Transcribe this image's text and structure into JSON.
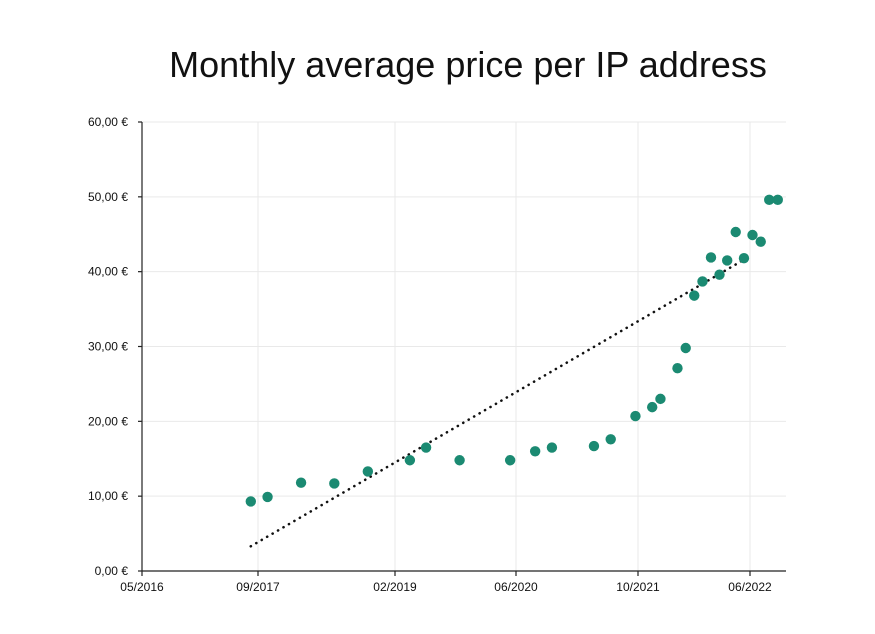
{
  "chart_data": {
    "type": "scatter",
    "title": "Monthly average price per IP address",
    "xlabel": "",
    "ylabel": "",
    "x_tick_labels": [
      "05/2016",
      "09/2017",
      "02/2019",
      "06/2020",
      "10/2021",
      "06/2022"
    ],
    "y_tick_labels": [
      "0,00 €",
      "10,00 €",
      "20,00 €",
      "30,00 €",
      "40,00 €",
      "50,00 €",
      "60,00 €"
    ],
    "y_ticks": [
      0,
      10,
      20,
      30,
      40,
      50,
      60
    ],
    "ylim": [
      0,
      60
    ],
    "xlim": [
      "2016-05-01",
      "2022-10-01"
    ],
    "grid": true,
    "marker_color": "#1b8a72",
    "trendline": {
      "style": "dotted",
      "color": "#111111",
      "points": [
        {
          "x": "2017-06-01",
          "y": 3.3
        },
        {
          "x": "2022-05-01",
          "y": 41.6
        }
      ]
    },
    "points": [
      {
        "x": "2017-06-01",
        "y": 9.3
      },
      {
        "x": "2017-08-01",
        "y": 9.9
      },
      {
        "x": "2017-12-01",
        "y": 11.8
      },
      {
        "x": "2018-04-01",
        "y": 11.7
      },
      {
        "x": "2018-08-01",
        "y": 13.3
      },
      {
        "x": "2019-01-01",
        "y": 14.8
      },
      {
        "x": "2019-03-01",
        "y": 16.5
      },
      {
        "x": "2019-07-01",
        "y": 14.8
      },
      {
        "x": "2020-01-01",
        "y": 14.8
      },
      {
        "x": "2020-04-01",
        "y": 16.0
      },
      {
        "x": "2020-06-01",
        "y": 16.5
      },
      {
        "x": "2020-11-01",
        "y": 16.7
      },
      {
        "x": "2021-01-01",
        "y": 17.6
      },
      {
        "x": "2021-04-01",
        "y": 20.7
      },
      {
        "x": "2021-06-01",
        "y": 21.9
      },
      {
        "x": "2021-07-01",
        "y": 23.0
      },
      {
        "x": "2021-09-01",
        "y": 27.1
      },
      {
        "x": "2021-10-01",
        "y": 29.8
      },
      {
        "x": "2021-11-01",
        "y": 36.8
      },
      {
        "x": "2021-12-01",
        "y": 38.7
      },
      {
        "x": "2022-01-01",
        "y": 41.9
      },
      {
        "x": "2022-02-01",
        "y": 39.6
      },
      {
        "x": "2022-03-01",
        "y": 41.5
      },
      {
        "x": "2022-04-01",
        "y": 45.3
      },
      {
        "x": "2022-05-01",
        "y": 41.8
      },
      {
        "x": "2022-06-01",
        "y": 44.9
      },
      {
        "x": "2022-07-01",
        "y": 44.0
      },
      {
        "x": "2022-08-01",
        "y": 49.6
      },
      {
        "x": "2022-09-01",
        "y": 49.6
      }
    ]
  }
}
